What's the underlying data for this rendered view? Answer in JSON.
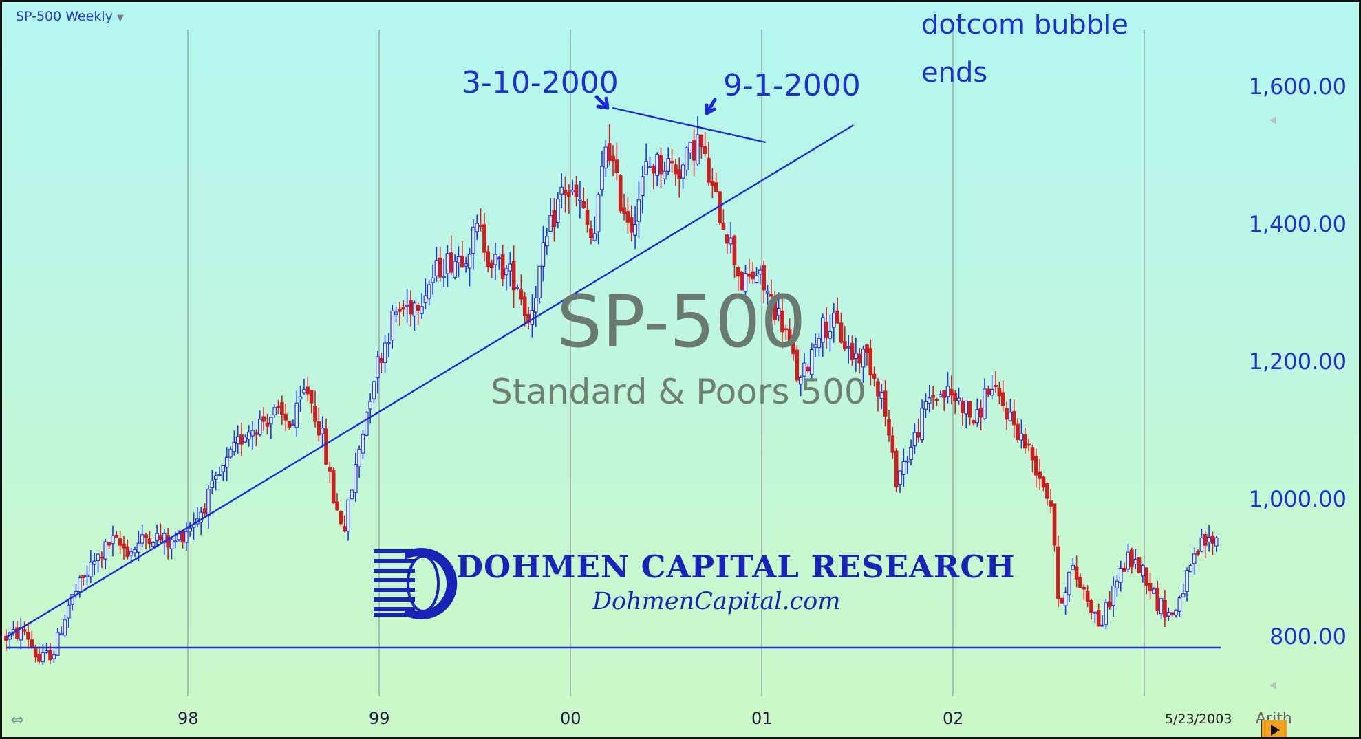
{
  "tab": {
    "title": "SP-500 Weekly"
  },
  "watermark": {
    "title": "SP-500",
    "subtitle": "Standard & Poors 500"
  },
  "annotations": {
    "peak1": "3-10-2000",
    "peak2": "9-1-2000",
    "note_line1": "dotcom bubble",
    "note_line2": "ends"
  },
  "brand": {
    "name": "DOHMEN CAPITAL RESEARCH",
    "url": "DohmenCapital.com"
  },
  "footer": {
    "end_date": "5/23/2003",
    "scale": "Arith"
  },
  "colors": {
    "up": "#2233ee",
    "down": "#cc1f1f",
    "trendline": "#1d2ad8",
    "grid": "#9aaba5",
    "axis_text": "#1f2fd6"
  },
  "chart_data": {
    "type": "candlestick",
    "title": "SP-500 Weekly",
    "x_ticks": [
      {
        "label": "98",
        "year": 1998.0
      },
      {
        "label": "99",
        "year": 1999.0
      },
      {
        "label": "00",
        "year": 2000.0
      },
      {
        "label": "01",
        "year": 2001.0
      },
      {
        "label": "02",
        "year": 2002.0
      }
    ],
    "xlim": [
      1997.05,
      2003.4
    ],
    "y_ticks": [
      {
        "label": "800.00",
        "value": 800
      },
      {
        "label": "1,000.00",
        "value": 1000
      },
      {
        "label": "1,200.00",
        "value": 1200
      },
      {
        "label": "1,400.00",
        "value": 1400
      },
      {
        "label": "1,600.00",
        "value": 1600
      }
    ],
    "ylim": [
      720,
      1655
    ],
    "grid": "vertical at year boundaries",
    "price_path": [
      [
        1997.05,
        800
      ],
      [
        1997.15,
        810
      ],
      [
        1997.22,
        765
      ],
      [
        1997.3,
        780
      ],
      [
        1997.38,
        850
      ],
      [
        1997.5,
        905
      ],
      [
        1997.6,
        940
      ],
      [
        1997.7,
        925
      ],
      [
        1997.8,
        950
      ],
      [
        1997.92,
        935
      ],
      [
        1998.05,
        975
      ],
      [
        1998.18,
        1040
      ],
      [
        1998.3,
        1100
      ],
      [
        1998.45,
        1125
      ],
      [
        1998.55,
        1110
      ],
      [
        1998.62,
        1165
      ],
      [
        1998.7,
        1095
      ],
      [
        1998.77,
        990
      ],
      [
        1998.82,
        960
      ],
      [
        1998.9,
        1080
      ],
      [
        1998.97,
        1180
      ],
      [
        1999.08,
        1270
      ],
      [
        1999.2,
        1290
      ],
      [
        1999.32,
        1340
      ],
      [
        1999.45,
        1360
      ],
      [
        1999.52,
        1395
      ],
      [
        1999.58,
        1350
      ],
      [
        1999.65,
        1335
      ],
      [
        1999.72,
        1320
      ],
      [
        1999.78,
        1260
      ],
      [
        1999.87,
        1370
      ],
      [
        1999.96,
        1455
      ],
      [
        2000.05,
        1430
      ],
      [
        2000.12,
        1370
      ],
      [
        2000.19,
        1530
      ],
      [
        2000.25,
        1445
      ],
      [
        2000.32,
        1400
      ],
      [
        2000.4,
        1485
      ],
      [
        2000.5,
        1490
      ],
      [
        2000.58,
        1480
      ],
      [
        2000.67,
        1525
      ],
      [
        2000.75,
        1440
      ],
      [
        2000.82,
        1390
      ],
      [
        2000.9,
        1310
      ],
      [
        2000.97,
        1330
      ],
      [
        2001.05,
        1290
      ],
      [
        2001.12,
        1250
      ],
      [
        2001.2,
        1165
      ],
      [
        2001.3,
        1250
      ],
      [
        2001.38,
        1255
      ],
      [
        2001.47,
        1210
      ],
      [
        2001.55,
        1210
      ],
      [
        2001.63,
        1150
      ],
      [
        2001.7,
        1030
      ],
      [
        2001.78,
        1075
      ],
      [
        2001.88,
        1150
      ],
      [
        2001.97,
        1155
      ],
      [
        2002.05,
        1140
      ],
      [
        2002.12,
        1110
      ],
      [
        2002.18,
        1165
      ],
      [
        2002.28,
        1130
      ],
      [
        2002.38,
        1080
      ],
      [
        2002.45,
        1040
      ],
      [
        2002.52,
        990
      ],
      [
        2002.55,
        845
      ],
      [
        2002.62,
        900
      ],
      [
        2002.7,
        860
      ],
      [
        2002.77,
        815
      ],
      [
        2002.85,
        880
      ],
      [
        2002.92,
        915
      ],
      [
        2003.0,
        895
      ],
      [
        2003.07,
        850
      ],
      [
        2003.15,
        830
      ],
      [
        2003.2,
        870
      ],
      [
        2003.3,
        935
      ],
      [
        2003.39,
        945
      ]
    ],
    "lines": [
      {
        "name": "uptrend",
        "points": [
          [
            1997.05,
            800
          ],
          [
            2001.48,
            1545
          ]
        ]
      },
      {
        "name": "top",
        "points": [
          [
            2000.22,
            1570
          ],
          [
            2001.02,
            1520
          ]
        ]
      },
      {
        "name": "support",
        "points": [
          [
            1997.05,
            785
          ],
          [
            2003.4,
            785
          ]
        ]
      }
    ]
  }
}
